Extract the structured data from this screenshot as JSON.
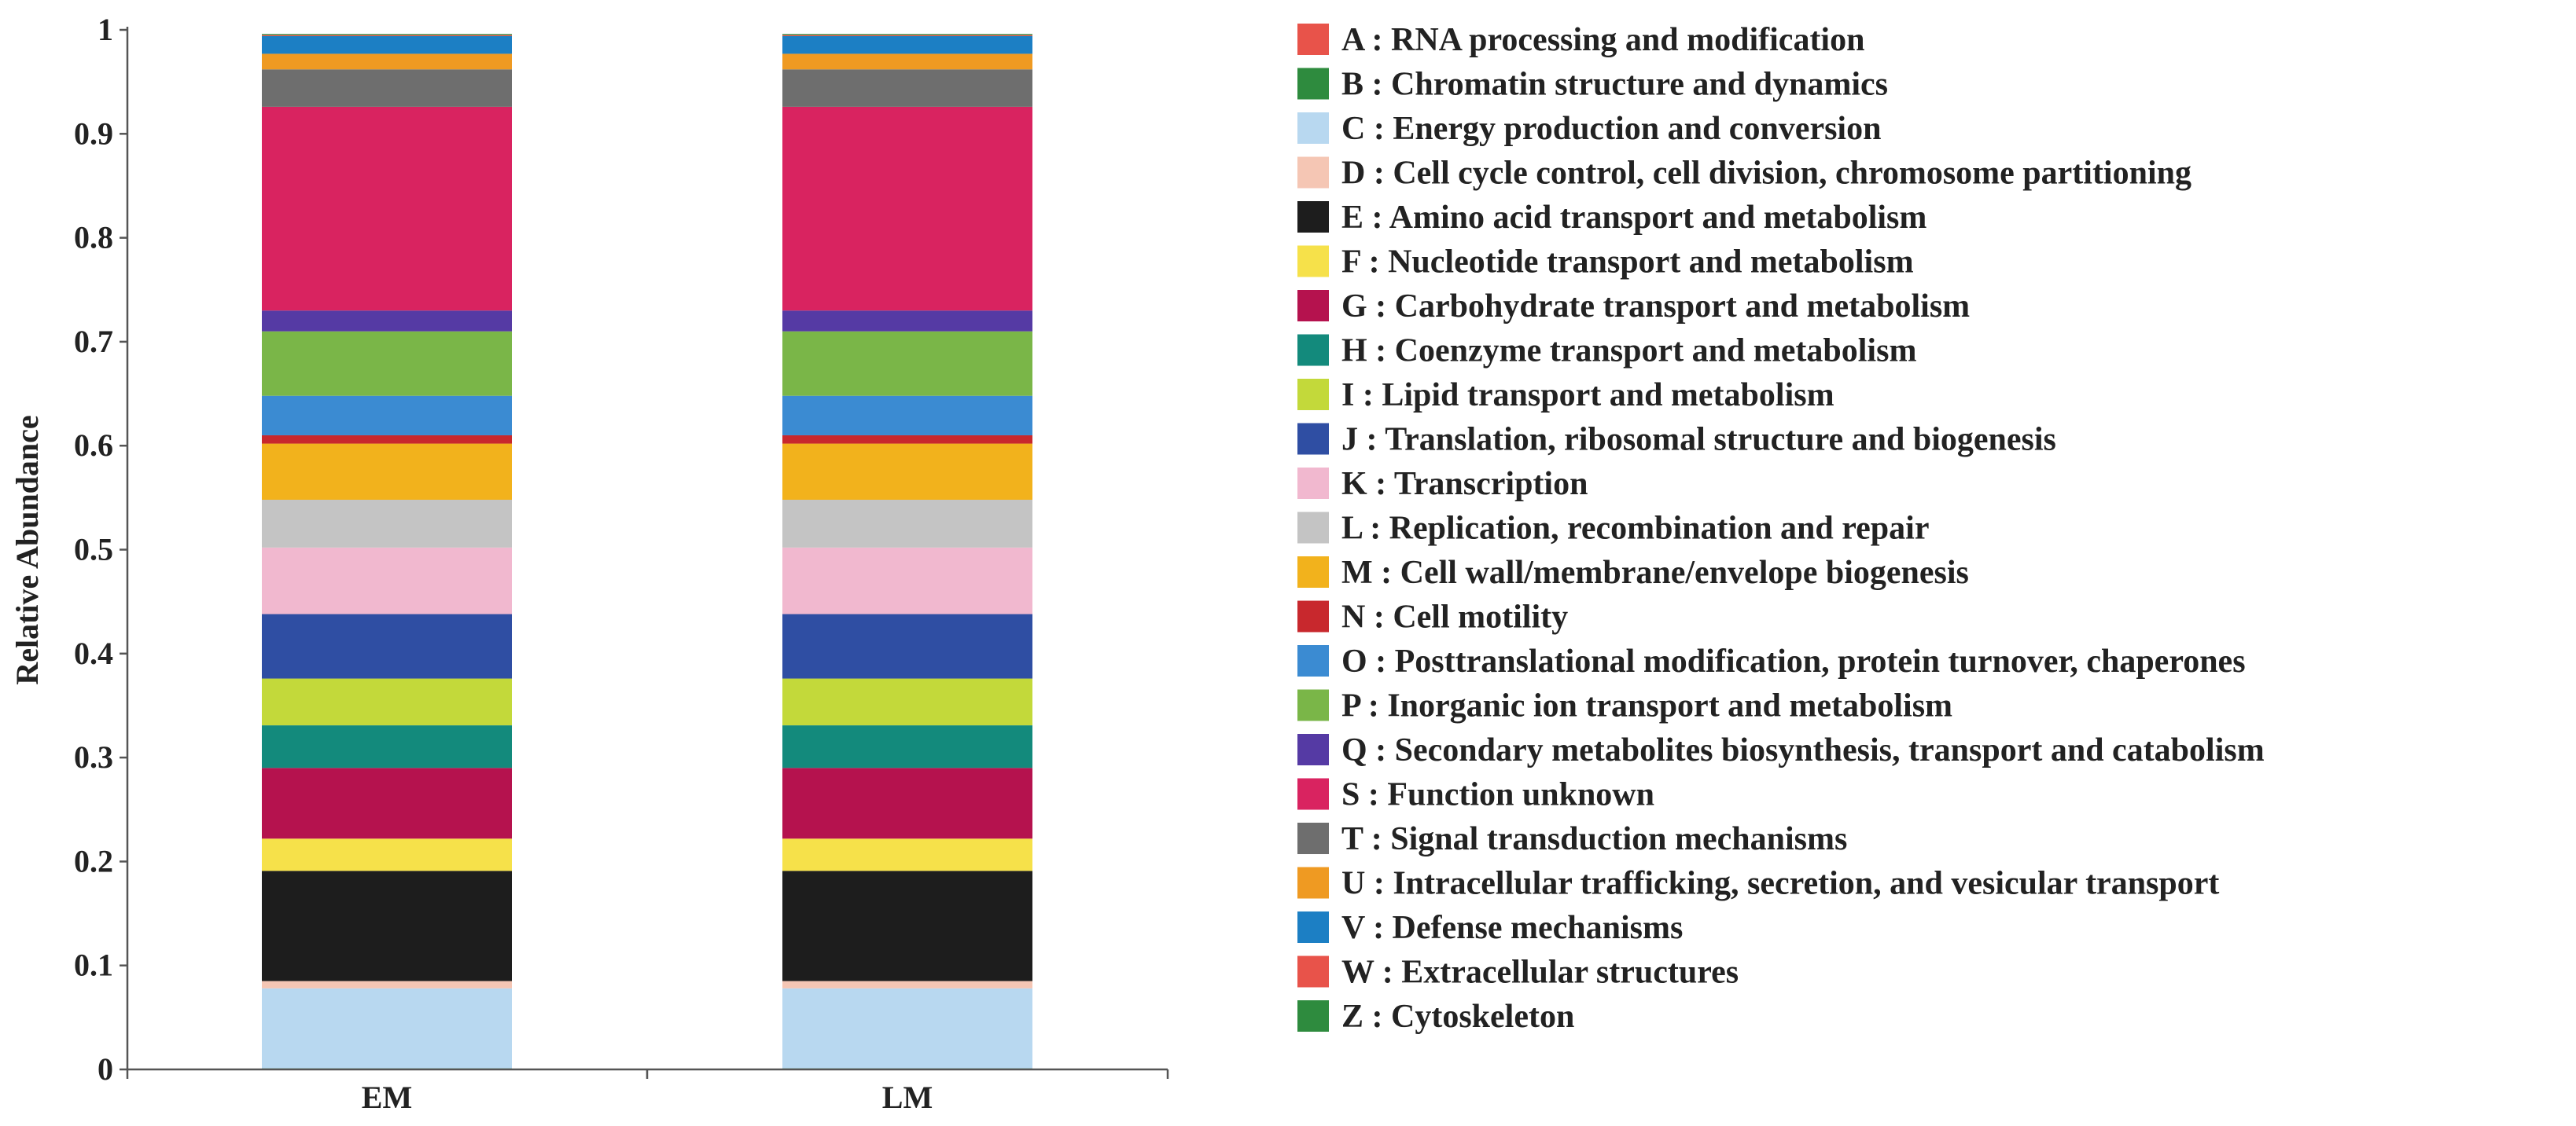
{
  "chart_data": {
    "type": "bar",
    "stacked": true,
    "title": "",
    "xlabel": "",
    "ylabel": "Relative Abundance",
    "ylim": [
      0,
      1
    ],
    "yticks": [
      "0",
      "0.1",
      "0.2",
      "0.3",
      "0.4",
      "0.5",
      "0.6",
      "0.7",
      "0.8",
      "0.9",
      "1"
    ],
    "categories": [
      "EM",
      "LM"
    ],
    "legend_position": "right",
    "series": [
      {
        "code": "A",
        "name": "A : RNA processing and modification",
        "color": "#e8534a",
        "values": [
          0.0005,
          0.0005
        ]
      },
      {
        "code": "B",
        "name": "B : Chromatin structure and dynamics",
        "color": "#2e8b3e",
        "values": [
          0.0005,
          0.0005
        ]
      },
      {
        "code": "C",
        "name": "C : Energy production and conversion",
        "color": "#b8d8f0",
        "values": [
          0.077,
          0.077
        ]
      },
      {
        "code": "D",
        "name": "D : Cell cycle control, cell division, chromosome partitioning",
        "color": "#f5c6b4",
        "values": [
          0.007,
          0.007
        ]
      },
      {
        "code": "E",
        "name": "E : Amino acid transport and metabolism",
        "color": "#1d1d1d",
        "values": [
          0.106,
          0.106
        ]
      },
      {
        "code": "F",
        "name": "F : Nucleotide transport and metabolism",
        "color": "#f6e14a",
        "values": [
          0.031,
          0.031
        ]
      },
      {
        "code": "G",
        "name": "G : Carbohydrate transport and metabolism",
        "color": "#b5124e",
        "values": [
          0.068,
          0.068
        ]
      },
      {
        "code": "H",
        "name": "H : Coenzyme transport and metabolism",
        "color": "#138a7c",
        "values": [
          0.041,
          0.041
        ]
      },
      {
        "code": "I",
        "name": "I : Lipid transport and metabolism",
        "color": "#c3d93a",
        "values": [
          0.045,
          0.045
        ]
      },
      {
        "code": "J",
        "name": "J : Translation, ribosomal structure and biogenesis",
        "color": "#2f4ea3",
        "values": [
          0.062,
          0.062
        ]
      },
      {
        "code": "K",
        "name": "K : Transcription",
        "color": "#f1b8cf",
        "values": [
          0.064,
          0.064
        ]
      },
      {
        "code": "L",
        "name": "L : Replication, recombination and repair",
        "color": "#c4c4c4",
        "values": [
          0.046,
          0.046
        ]
      },
      {
        "code": "M",
        "name": "M : Cell wall/membrane/envelope biogenesis",
        "color": "#f2b21c",
        "values": [
          0.054,
          0.054
        ]
      },
      {
        "code": "N",
        "name": "N : Cell motility",
        "color": "#c8282d",
        "values": [
          0.008,
          0.008
        ]
      },
      {
        "code": "O",
        "name": "O : Posttranslational modification, protein turnover, chaperones",
        "color": "#3b8bd2",
        "values": [
          0.038,
          0.038
        ]
      },
      {
        "code": "P",
        "name": "P : Inorganic ion transport and metabolism",
        "color": "#7ab648",
        "values": [
          0.062,
          0.062
        ]
      },
      {
        "code": "Q",
        "name": "Q : Secondary metabolites biosynthesis, transport and catabolism",
        "color": "#553aa4",
        "values": [
          0.02,
          0.02
        ]
      },
      {
        "code": "S",
        "name": "S : Function unknown",
        "color": "#d92360",
        "values": [
          0.196,
          0.196
        ]
      },
      {
        "code": "T",
        "name": "T : Signal transduction mechanisms",
        "color": "#6e6e6e",
        "values": [
          0.036,
          0.036
        ]
      },
      {
        "code": "U",
        "name": "U : Intracellular trafficking, secretion, and vesicular transport",
        "color": "#ef9a22",
        "values": [
          0.015,
          0.015
        ]
      },
      {
        "code": "V",
        "name": "V : Defense mechanisms",
        "color": "#1c7fc4",
        "values": [
          0.017,
          0.017
        ]
      },
      {
        "code": "W",
        "name": "W : Extracellular structures",
        "color": "#e8534a",
        "values": [
          0.001,
          0.001
        ]
      },
      {
        "code": "Z",
        "name": "Z : Cytoskeleton",
        "color": "#2e8b3e",
        "values": [
          0.001,
          0.001
        ]
      }
    ]
  }
}
